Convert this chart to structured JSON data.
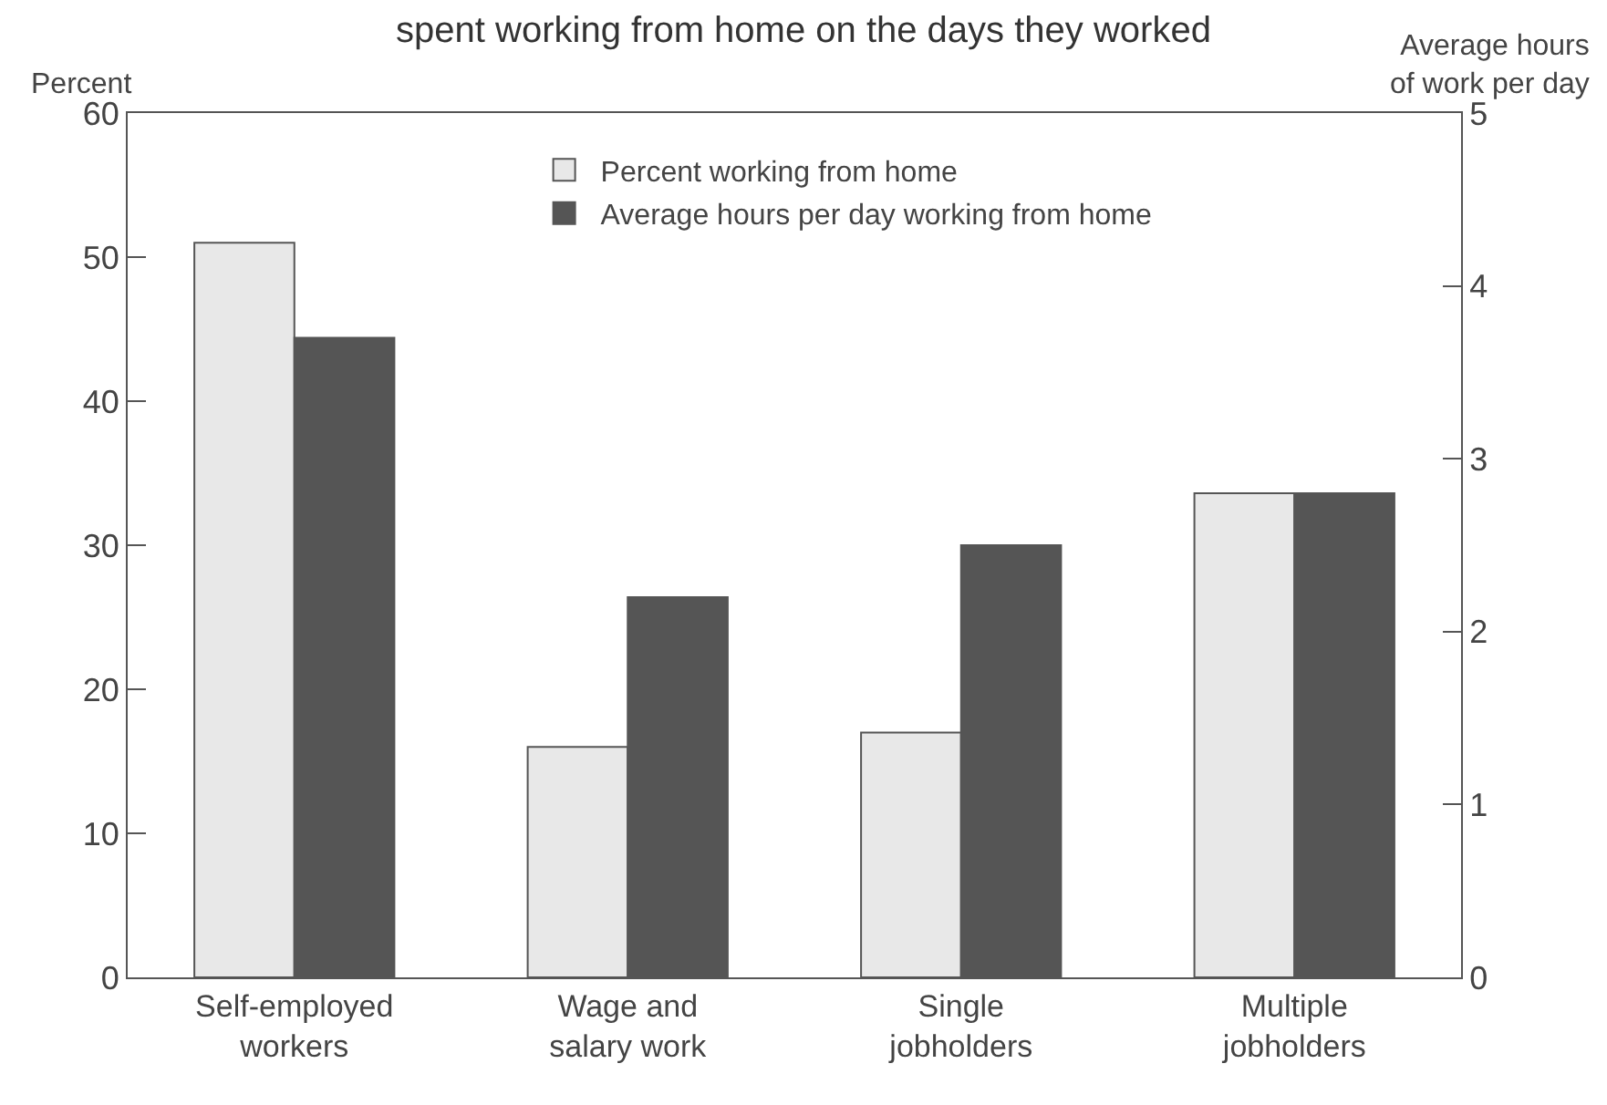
{
  "chart_data": {
    "type": "bar",
    "title": "spent working from home on the days they worked",
    "ylabel": "Percent",
    "y2label": "Average hours\nof work per day",
    "categories": [
      "Self-employed\nworkers",
      "Wage and\nsalary work",
      "Single\njobholders",
      "Multiple\njobholders"
    ],
    "series": [
      {
        "name": "Percent working from home",
        "color": "#e8e8e8",
        "values": [
          51,
          16,
          17,
          33.6
        ]
      },
      {
        "name": "Average hours per day working from home",
        "color": "#555555",
        "axis": "y2",
        "values": [
          3.7,
          2.2,
          2.5,
          2.8
        ]
      }
    ],
    "ylim": [
      0,
      60
    ],
    "yticks": [
      0,
      10,
      20,
      30,
      40,
      50,
      60
    ],
    "y2lim": [
      0,
      5
    ],
    "y2ticks": [
      0,
      1,
      2,
      3,
      4,
      5
    ],
    "legend": "top"
  }
}
